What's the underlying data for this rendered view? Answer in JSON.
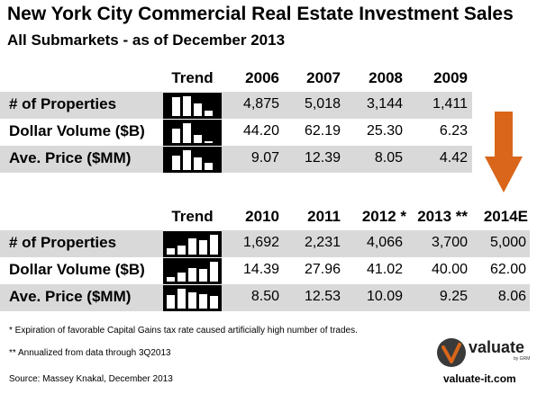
{
  "title": "New York City Commercial Real Estate Investment Sales",
  "subtitle": "All Submarkets - as of December 2013",
  "table1": {
    "trend_label": "Trend",
    "years": [
      "2006",
      "2007",
      "2008",
      "2009"
    ],
    "rows": [
      {
        "label": "# of Properties",
        "values": [
          "4,875",
          "5,018",
          "3,144",
          "1,411"
        ],
        "trend": [
          4875,
          5018,
          3144,
          1411
        ]
      },
      {
        "label": "Dollar Volume ($B)",
        "values": [
          "44.20",
          "62.19",
          "25.30",
          "6.23"
        ],
        "trend": [
          44.2,
          62.19,
          25.3,
          6.23
        ]
      },
      {
        "label": "Ave. Price ($MM)",
        "values": [
          "9.07",
          "12.39",
          "8.05",
          "4.42"
        ],
        "trend": [
          9.07,
          12.39,
          8.05,
          4.42
        ]
      }
    ]
  },
  "table2": {
    "trend_label": "Trend",
    "years": [
      "2010",
      "2011",
      "2012 *",
      "2013 **",
      "2014E"
    ],
    "rows": [
      {
        "label": "# of Properties",
        "values": [
          "1,692",
          "2,231",
          "4,066",
          "3,700",
          "5,000"
        ],
        "trend": [
          1692,
          2231,
          4066,
          3700,
          5000
        ]
      },
      {
        "label": "Dollar Volume ($B)",
        "values": [
          "14.39",
          "27.96",
          "41.02",
          "40.00",
          "62.00"
        ],
        "trend": [
          14.39,
          27.96,
          41.02,
          40.0,
          62.0
        ]
      },
      {
        "label": "Ave. Price ($MM)",
        "values": [
          "8.50",
          "12.53",
          "10.09",
          "9.25",
          "8.06"
        ],
        "trend": [
          8.5,
          12.53,
          10.09,
          9.25,
          8.06
        ]
      }
    ]
  },
  "arrow_color": "#d9661a",
  "notes": {
    "note1": "* Expiration of favorable Capital Gains tax rate caused artificially high number of trades.",
    "note2": "** Annualized from data through 3Q2013",
    "source": "Source: Massey Knakal, December 2013"
  },
  "logo": {
    "name": "valuate",
    "tagline": "by GRM",
    "website": "valuate-it.com"
  }
}
